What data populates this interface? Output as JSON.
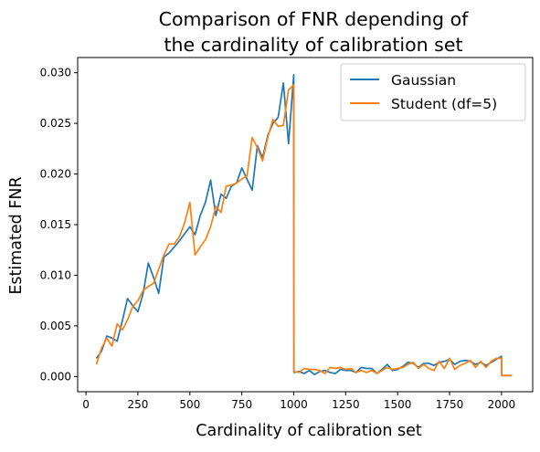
{
  "chart_data": {
    "type": "line",
    "title_lines": [
      "Comparison of FNR depending of",
      "the cardinality of calibration set"
    ],
    "xlabel": "Cardinality of calibration set",
    "ylabel": "Estimated FNR",
    "xlim": [
      -40,
      2150
    ],
    "ylim": [
      -0.0015,
      0.0315
    ],
    "xticks": [
      0,
      250,
      500,
      750,
      1000,
      1250,
      1500,
      1750,
      2000
    ],
    "xtick_labels": [
      "0",
      "250",
      "500",
      "750",
      "1000",
      "1250",
      "1500",
      "1750",
      "2000"
    ],
    "yticks": [
      0.0,
      0.005,
      0.01,
      0.015,
      0.02,
      0.025,
      0.03
    ],
    "ytick_labels": [
      "0.000",
      "0.005",
      "0.010",
      "0.015",
      "0.020",
      "0.025",
      "0.030"
    ],
    "grid": false,
    "legend_position": "upper right",
    "series": [
      {
        "name": "Gaussian",
        "color": "#1f77b4",
        "x": [
          50,
          75,
          100,
          125,
          150,
          175,
          200,
          225,
          250,
          275,
          300,
          325,
          350,
          375,
          400,
          425,
          450,
          475,
          500,
          525,
          550,
          575,
          600,
          625,
          650,
          675,
          700,
          725,
          750,
          775,
          800,
          825,
          850,
          875,
          900,
          925,
          950,
          975,
          1000,
          1001,
          1025,
          1050,
          1075,
          1100,
          1125,
          1150,
          1175,
          1200,
          1225,
          1250,
          1275,
          1300,
          1325,
          1350,
          1375,
          1400,
          1425,
          1450,
          1475,
          1500,
          1525,
          1550,
          1575,
          1600,
          1625,
          1650,
          1675,
          1700,
          1725,
          1750,
          1775,
          1800,
          1825,
          1850,
          1875,
          1900,
          1925,
          1950,
          1975,
          2000,
          2001,
          2025,
          2050
        ],
        "y": [
          0.0018,
          0.0025,
          0.004,
          0.0038,
          0.0035,
          0.0055,
          0.0077,
          0.007,
          0.0064,
          0.0082,
          0.0112,
          0.0098,
          0.0082,
          0.0118,
          0.0122,
          0.0128,
          0.0134,
          0.0141,
          0.0148,
          0.014,
          0.0159,
          0.0172,
          0.0194,
          0.0159,
          0.018,
          0.0176,
          0.0188,
          0.0191,
          0.0206,
          0.0195,
          0.0184,
          0.0228,
          0.0216,
          0.0238,
          0.025,
          0.0256,
          0.029,
          0.023,
          0.0298,
          0.0004,
          0.0005,
          0.0003,
          0.0006,
          0.0002,
          0.0005,
          0.0006,
          0.0004,
          0.0003,
          0.0007,
          0.0006,
          0.0006,
          0.0004,
          0.0009,
          0.0008,
          0.0008,
          0.0003,
          0.0007,
          0.0012,
          0.0006,
          0.0007,
          0.001,
          0.0014,
          0.0013,
          0.0009,
          0.0013,
          0.0013,
          0.0011,
          0.0014,
          0.0015,
          0.0017,
          0.0012,
          0.0015,
          0.0016,
          0.0015,
          0.0012,
          0.0014,
          0.0011,
          0.0014,
          0.0017,
          0.002,
          0.0001,
          0.0001,
          0.0001
        ]
      },
      {
        "name": "Student (df=5)",
        "color": "#ff7f0e",
        "x": [
          50,
          75,
          100,
          125,
          150,
          175,
          200,
          225,
          250,
          275,
          300,
          325,
          350,
          375,
          400,
          425,
          450,
          475,
          500,
          525,
          550,
          575,
          600,
          625,
          650,
          675,
          700,
          725,
          750,
          775,
          800,
          825,
          850,
          875,
          900,
          925,
          950,
          975,
          1000,
          1001,
          1025,
          1050,
          1075,
          1100,
          1125,
          1150,
          1175,
          1200,
          1225,
          1250,
          1275,
          1300,
          1325,
          1350,
          1375,
          1400,
          1425,
          1450,
          1475,
          1500,
          1525,
          1550,
          1575,
          1600,
          1625,
          1650,
          1675,
          1700,
          1725,
          1750,
          1775,
          1800,
          1825,
          1850,
          1875,
          1900,
          1925,
          1950,
          1975,
          2000,
          2001,
          2025,
          2050
        ],
        "y": [
          0.0012,
          0.0028,
          0.0038,
          0.003,
          0.0052,
          0.0046,
          0.0056,
          0.0069,
          0.0075,
          0.0085,
          0.0089,
          0.0092,
          0.0106,
          0.012,
          0.0131,
          0.0131,
          0.0138,
          0.0152,
          0.0172,
          0.012,
          0.0128,
          0.0135,
          0.0148,
          0.0168,
          0.0162,
          0.0188,
          0.0189,
          0.0191,
          0.0195,
          0.0198,
          0.0236,
          0.0226,
          0.0213,
          0.0236,
          0.0254,
          0.0247,
          0.0248,
          0.0283,
          0.0288,
          0.0005,
          0.0004,
          0.0008,
          0.0007,
          0.0007,
          0.0006,
          0.0003,
          0.0009,
          0.0008,
          0.0009,
          0.0007,
          0.0008,
          0.0004,
          0.0006,
          0.0004,
          0.0006,
          0.0003,
          0.0006,
          0.0009,
          0.0007,
          0.0008,
          0.0009,
          0.0012,
          0.0014,
          0.0008,
          0.0012,
          0.0008,
          0.0006,
          0.0015,
          0.0008,
          0.0018,
          0.0007,
          0.0011,
          0.0013,
          0.0016,
          0.0009,
          0.0015,
          0.0009,
          0.0015,
          0.0018,
          0.0018,
          0.0001,
          0.0001,
          0.0001
        ]
      }
    ]
  }
}
